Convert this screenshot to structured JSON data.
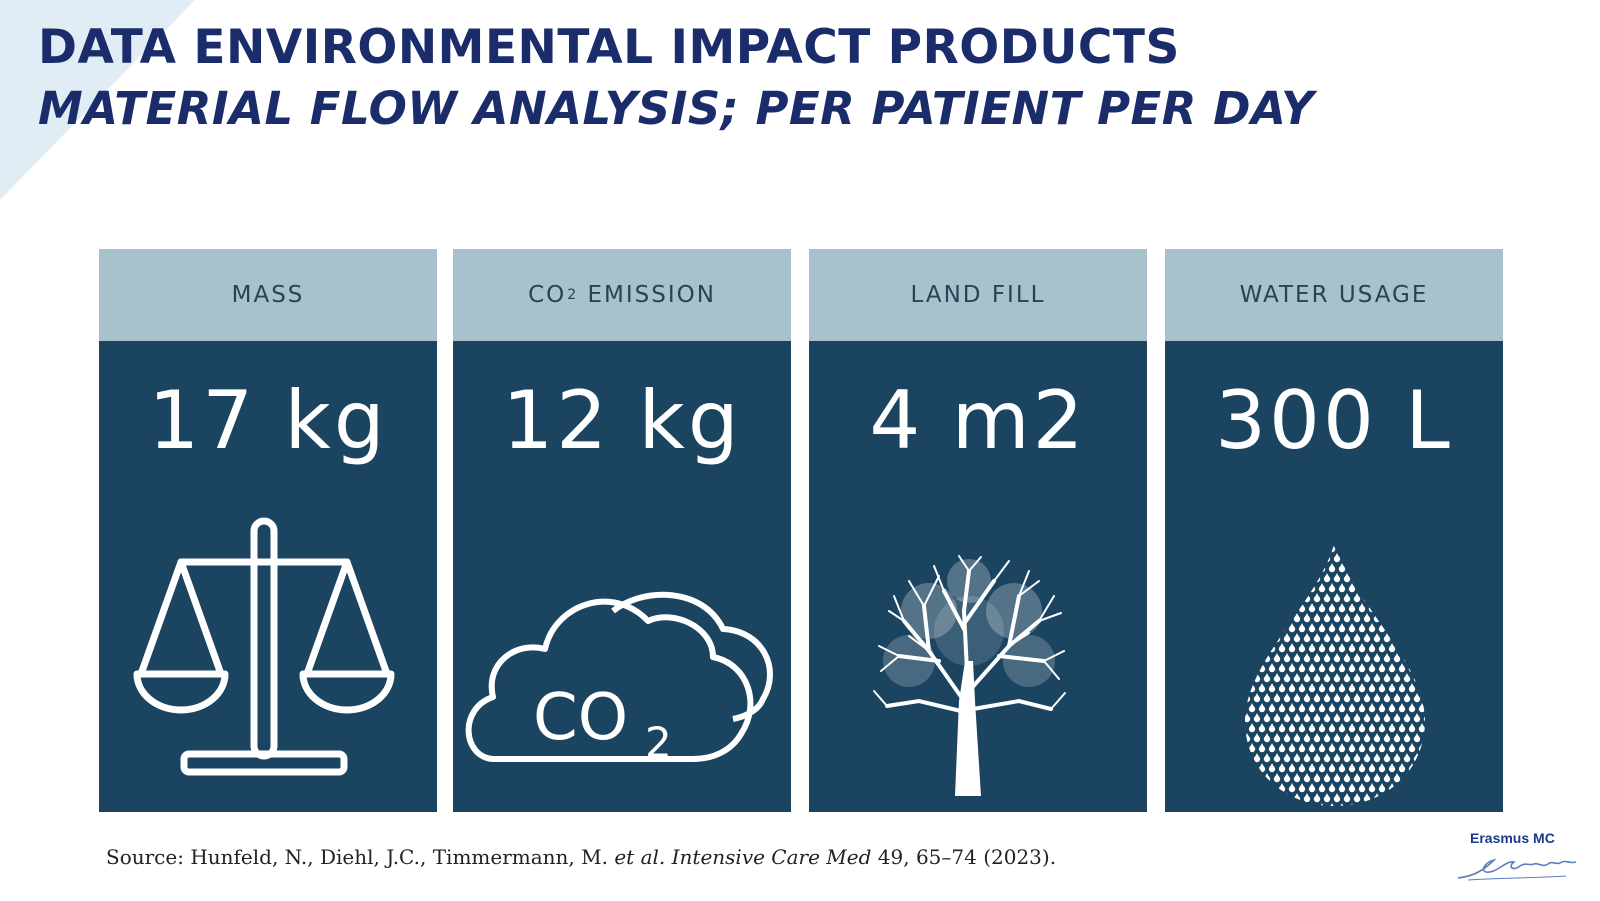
{
  "slide": {
    "title": "DATA ENVIRONMENTAL IMPACT PRODUCTS",
    "subtitle": "MATERIAL FLOW ANALYSIS; PER PATIENT PER DAY"
  },
  "cards": [
    {
      "label": "MASS",
      "value": "17 kg",
      "icon": "scale-icon"
    },
    {
      "label_prefix": "CO",
      "label_sub": "2",
      "label_suffix": " EMISSION",
      "value": "12 kg",
      "icon": "co2-cloud-icon",
      "icon_text": "CO",
      "icon_sub": "2"
    },
    {
      "label": "LAND FILL",
      "value": "4 m2",
      "icon": "tree-icon"
    },
    {
      "label": "WATER USAGE",
      "value": "300 L",
      "icon": "water-drop-icon"
    }
  ],
  "source": {
    "prefix": "Source: Hunfeld, N., Diehl, J.C., Timmermann, M. ",
    "etal": "et al.",
    "journal": " Intensive Care Med",
    "suffix": " 49, 65–74 (2023)."
  },
  "logo": {
    "text": "Erasmus MC",
    "signature": "Ezafung"
  },
  "colors": {
    "title": "#1b2c6b",
    "card_header": "#a7c1cd",
    "card_body": "#1b4461",
    "accent_corner": "#deecf5"
  }
}
